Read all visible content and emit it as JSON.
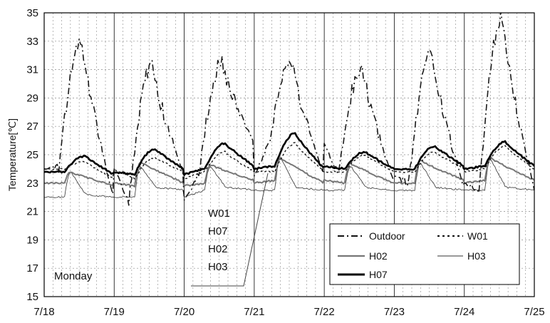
{
  "chart_data": {
    "type": "line",
    "ylabel": "Temperature[℃]",
    "xlabel": "",
    "title": "",
    "ylim": [
      15,
      35
    ],
    "yticks": [
      "15",
      "17",
      "19",
      "21",
      "23",
      "25",
      "27",
      "29",
      "31",
      "33",
      "35"
    ],
    "xlim": [
      0,
      7
    ],
    "xticks": [
      "7/18",
      "7/19",
      "7/20",
      "7/21",
      "7/22",
      "7/23",
      "7/24",
      "7/25"
    ],
    "grid": "dashed",
    "legend_position": "bottom-right",
    "annotations": {
      "monday": "Monday",
      "sensor_list": [
        "W01",
        "H07",
        "H02",
        "H03"
      ]
    },
    "series": [
      {
        "name": "Outdoor",
        "style": "dashdot",
        "color": "#1a1a1a",
        "daily": [
          {
            "min": 24.0,
            "max": 33.0
          },
          {
            "min": 21.8,
            "max": 31.3
          },
          {
            "min": 23.5,
            "max": 31.5
          },
          {
            "min": 25.8,
            "max": 31.5
          },
          {
            "min": 23.5,
            "max": 31.2
          },
          {
            "min": 23.0,
            "max": 32.3
          },
          {
            "min": 22.5,
            "max": 34.6
          }
        ]
      },
      {
        "name": "W01",
        "style": "dotted",
        "color": "#1a1a1a",
        "daily": [
          {
            "min": 24.0,
            "max": 24.5
          },
          {
            "min": 23.3,
            "max": 24.8
          },
          {
            "min": 23.8,
            "max": 25.2
          },
          {
            "min": 23.8,
            "max": 25.8
          },
          {
            "min": 23.8,
            "max": 25.0
          },
          {
            "min": 23.8,
            "max": 25.2
          },
          {
            "min": 24.0,
            "max": 25.6
          }
        ]
      },
      {
        "name": "H02",
        "style": "solid",
        "color": "#777777",
        "daily": [
          {
            "min": 23.0,
            "max": 23.8
          },
          {
            "min": 22.8,
            "max": 24.5
          },
          {
            "min": 23.0,
            "max": 24.3
          },
          {
            "min": 23.2,
            "max": 24.8
          },
          {
            "min": 23.0,
            "max": 24.4
          },
          {
            "min": 23.0,
            "max": 24.6
          },
          {
            "min": 23.2,
            "max": 24.8
          }
        ]
      },
      {
        "name": "H03",
        "style": "thin",
        "color": "#333333",
        "daily": [
          {
            "min": 22.0,
            "max": 23.8
          },
          {
            "min": 22.0,
            "max": 24.2
          },
          {
            "min": 22.5,
            "max": 24.2
          },
          {
            "min": 22.5,
            "max": 24.8
          },
          {
            "min": 22.5,
            "max": 24.2
          },
          {
            "min": 22.5,
            "max": 24.4
          },
          {
            "min": 22.5,
            "max": 24.7
          }
        ]
      },
      {
        "name": "H07",
        "style": "thick",
        "color": "#000000",
        "daily": [
          {
            "min": 23.8,
            "max": 24.9
          },
          {
            "min": 23.6,
            "max": 25.4
          },
          {
            "min": 24.0,
            "max": 25.8
          },
          {
            "min": 24.2,
            "max": 26.5
          },
          {
            "min": 24.0,
            "max": 25.2
          },
          {
            "min": 24.0,
            "max": 25.6
          },
          {
            "min": 24.2,
            "max": 25.9
          }
        ]
      }
    ]
  }
}
